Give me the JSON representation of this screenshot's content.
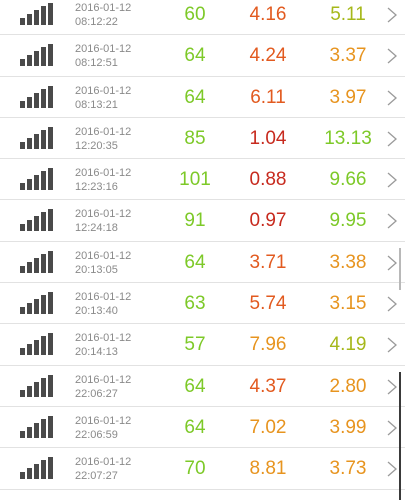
{
  "colors": {
    "green": "#7dc928",
    "yellow_green": "#a6b81a",
    "orange": "#e7941f",
    "red_orange": "#e25a1f",
    "red": "#c72a1e",
    "date_gray": "#8a8a8a"
  },
  "icons": {
    "signal": "signal-bars-icon",
    "chevron": "chevron-right-icon"
  },
  "records": [
    {
      "date": "2016-01-12",
      "time": "08:12:22",
      "v1": "60",
      "v2": "4.16",
      "v3": "5.11",
      "c1": "#7dc928",
      "c2": "#e25a1f",
      "c3": "#a6b81a"
    },
    {
      "date": "2016-01-12",
      "time": "08:12:51",
      "v1": "64",
      "v2": "4.24",
      "v3": "3.37",
      "c1": "#7dc928",
      "c2": "#e25a1f",
      "c3": "#e7941f"
    },
    {
      "date": "2016-01-12",
      "time": "08:13:21",
      "v1": "64",
      "v2": "6.11",
      "v3": "3.97",
      "c1": "#7dc928",
      "c2": "#e25a1f",
      "c3": "#e7941f"
    },
    {
      "date": "2016-01-12",
      "time": "12:20:35",
      "v1": "85",
      "v2": "1.04",
      "v3": "13.13",
      "c1": "#7dc928",
      "c2": "#c72a1e",
      "c3": "#7dc928"
    },
    {
      "date": "2016-01-12",
      "time": "12:23:16",
      "v1": "101",
      "v2": "0.88",
      "v3": "9.66",
      "c1": "#7dc928",
      "c2": "#c72a1e",
      "c3": "#7dc928"
    },
    {
      "date": "2016-01-12",
      "time": "12:24:18",
      "v1": "91",
      "v2": "0.97",
      "v3": "9.95",
      "c1": "#7dc928",
      "c2": "#c72a1e",
      "c3": "#7dc928"
    },
    {
      "date": "2016-01-12",
      "time": "20:13:05",
      "v1": "64",
      "v2": "3.71",
      "v3": "3.38",
      "c1": "#7dc928",
      "c2": "#e25a1f",
      "c3": "#e7941f"
    },
    {
      "date": "2016-01-12",
      "time": "20:13:40",
      "v1": "63",
      "v2": "5.74",
      "v3": "3.15",
      "c1": "#7dc928",
      "c2": "#e25a1f",
      "c3": "#e7941f"
    },
    {
      "date": "2016-01-12",
      "time": "20:14:13",
      "v1": "57",
      "v2": "7.96",
      "v3": "4.19",
      "c1": "#7dc928",
      "c2": "#e7941f",
      "c3": "#a6b81a"
    },
    {
      "date": "2016-01-12",
      "time": "22:06:27",
      "v1": "64",
      "v2": "4.37",
      "v3": "2.80",
      "c1": "#7dc928",
      "c2": "#e25a1f",
      "c3": "#e7941f"
    },
    {
      "date": "2016-01-12",
      "time": "22:06:59",
      "v1": "64",
      "v2": "7.02",
      "v3": "3.99",
      "c1": "#7dc928",
      "c2": "#e7941f",
      "c3": "#e7941f"
    },
    {
      "date": "2016-01-12",
      "time": "22:07:27",
      "v1": "70",
      "v2": "8.81",
      "v3": "3.73",
      "c1": "#7dc928",
      "c2": "#e7941f",
      "c3": "#e7941f"
    }
  ]
}
